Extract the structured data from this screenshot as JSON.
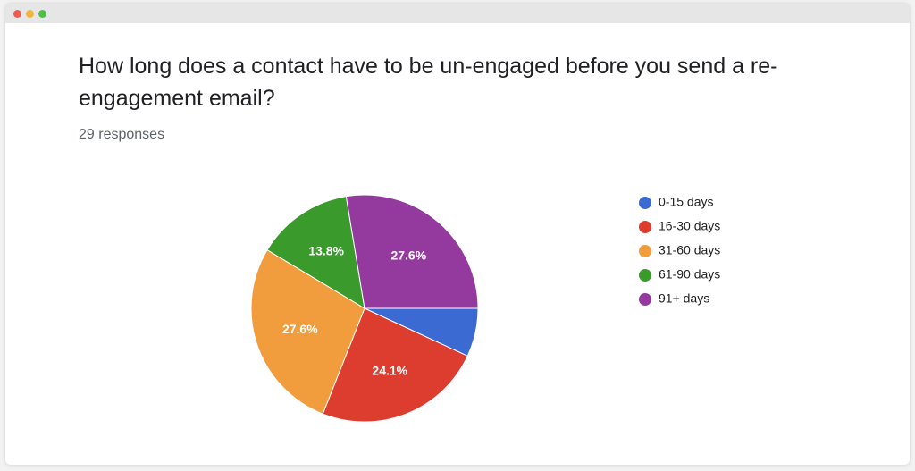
{
  "chart_data": {
    "type": "pie",
    "title": "How long does a contact have to be un-engaged before you send a re-engagement email?",
    "subtitle": "29 responses",
    "categories": [
      "0-15 days",
      "16-30 days",
      "31-60 days",
      "61-90 days",
      "91+ days"
    ],
    "values": [
      6.9,
      24.1,
      27.6,
      13.8,
      27.6
    ],
    "value_labels": [
      null,
      "24.1%",
      "27.6%",
      "13.8%",
      "27.6%"
    ],
    "colors": [
      "#3b6bd2",
      "#dc3d2f",
      "#f29d3d",
      "#3a9a2c",
      "#943a9f"
    ],
    "legend": "right"
  }
}
